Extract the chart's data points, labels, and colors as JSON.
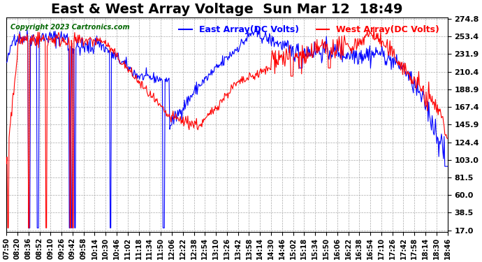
{
  "title": "East & West Array Voltage  Sun Mar 12  18:49",
  "copyright": "Copyright 2023 Cartronics.com",
  "legend_east": "East Array(DC Volts)",
  "legend_west": "West Array(DC Volts)",
  "east_color": "blue",
  "west_color": "red",
  "background_color": "#ffffff",
  "grid_color": "#aaaaaa",
  "yticks": [
    17.0,
    38.5,
    60.0,
    81.5,
    103.0,
    124.4,
    145.9,
    167.4,
    188.9,
    210.4,
    231.9,
    253.4,
    274.8
  ],
  "ymin": 17.0,
  "ymax": 274.8,
  "xtick_labels": [
    "07:50",
    "08:20",
    "08:36",
    "08:52",
    "09:10",
    "09:26",
    "09:42",
    "09:58",
    "10:14",
    "10:30",
    "10:46",
    "11:02",
    "11:18",
    "11:34",
    "11:50",
    "12:06",
    "12:22",
    "12:38",
    "12:54",
    "13:10",
    "13:26",
    "13:42",
    "13:58",
    "14:14",
    "14:30",
    "14:46",
    "15:02",
    "15:18",
    "15:34",
    "15:50",
    "16:06",
    "16:22",
    "16:38",
    "16:54",
    "17:10",
    "17:26",
    "17:42",
    "17:58",
    "18:14",
    "18:30",
    "18:46"
  ],
  "title_fontsize": 14,
  "axis_fontsize": 8,
  "legend_fontsize": 9,
  "copyright_fontsize": 7,
  "linewidth": 0.8
}
